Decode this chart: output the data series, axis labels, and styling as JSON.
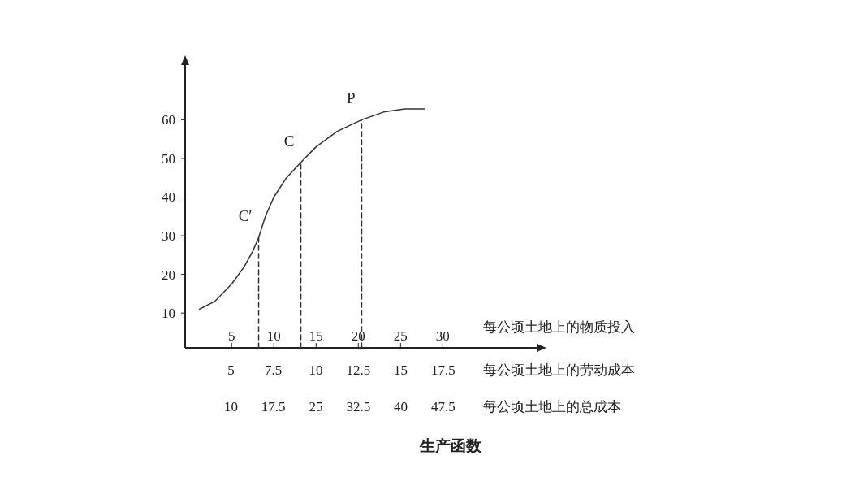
{
  "chart_data": {
    "type": "line",
    "title": "生产函数",
    "xlabel": "每公顷土地上的物质投入",
    "x2label": "每公顷土地上的劳动成本",
    "xlim": [
      -0.5,
      41.5
    ],
    "ylim": [
      1,
      75
    ],
    "xticks": [
      5,
      10,
      15,
      20,
      25,
      30
    ],
    "yticks": [
      10,
      20,
      30,
      40,
      50,
      60
    ],
    "x2lim": [
      2.3,
      23.2
    ],
    "x2ticks": [
      5,
      7.5,
      10,
      12.5,
      15,
      17.5
    ],
    "series": [
      {
        "color": "#333333",
        "line_style": "solid",
        "x": [
          1.2,
          3,
          5,
          6.5,
          7.5,
          8.2,
          9,
          10,
          11.5,
          13.2,
          15,
          17.5,
          20.4,
          23,
          25.5,
          27.8
        ],
        "values": [
          11,
          13,
          17.5,
          22,
          26,
          29.5,
          35,
          40,
          45,
          49,
          53,
          57,
          60,
          62,
          62.8,
          62.8
        ]
      },
      {
        "color": "#333333",
        "line_style": "dashed",
        "x": [
          8.2,
          8.2
        ],
        "values": [
          1,
          29.5
        ]
      },
      {
        "color": "#333333",
        "line_style": "dashed",
        "x": [
          13.2,
          13.2
        ],
        "values": [
          1,
          49
        ]
      },
      {
        "color": "#333333",
        "line_style": "dashed",
        "x": [
          20.4,
          20.4
        ],
        "values": [
          1,
          60
        ]
      }
    ],
    "annotations": [
      {
        "text": "C′",
        "x": 8.2,
        "y": 29.5
      },
      {
        "text": "C",
        "x": 13.2,
        "y": 49
      },
      {
        "text": "P",
        "x": 20.4,
        "y": 60
      },
      "每公顷土地上的总成本",
      "10",
      "17.5",
      "25",
      "32.5",
      "40",
      "47.5"
    ]
  }
}
